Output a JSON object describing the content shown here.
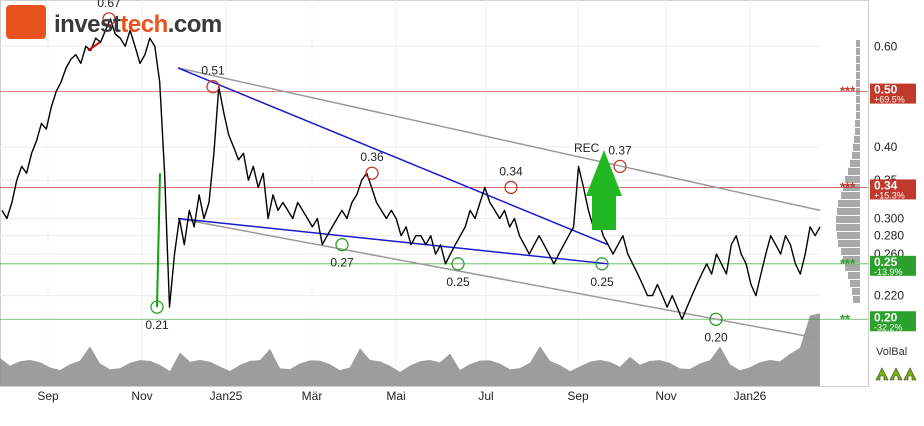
{
  "header": {
    "logo_text_a": "invest",
    "logo_text_b": "tech",
    "logo_text_c": ".com"
  },
  "volbal": {
    "label": "VolBal",
    "arrows": [
      "arrow-up-green-icon",
      "arrow-up-green-icon",
      "arrow-up-green-icon"
    ]
  },
  "colors": {
    "price_line": "#000000",
    "rising_segment": "#d40000",
    "falling_segment": "#10a010",
    "trend_blue": "#1a1acc",
    "channel_grey": "#9a9a9a",
    "resistance": "#c0392b",
    "support": "#2ca02c",
    "volume": "#8c8c8c",
    "rec_arrow": "#22b822"
  },
  "chart_data": {
    "type": "line",
    "x_labels": [
      "Sep",
      "Nov",
      "Jan25",
      "Mär",
      "Mai",
      "Jul",
      "Sep",
      "Nov",
      "Jan26"
    ],
    "y_ticks": [
      "0.60",
      "0.40",
      "0.35",
      "0.300",
      "0.280",
      "0.260",
      "0.220"
    ],
    "y_scale": "log",
    "ylim": [
      0.19,
      0.7
    ],
    "series": [
      {
        "values": [
          0.31,
          0.3,
          0.32,
          0.35,
          0.37,
          0.36,
          0.39,
          0.41,
          0.44,
          0.43,
          0.47,
          0.5,
          0.52,
          0.55,
          0.57,
          0.58,
          0.56,
          0.6,
          0.59,
          0.62,
          0.61,
          0.64,
          0.67,
          0.63,
          0.62,
          0.6,
          0.64,
          0.6,
          0.56,
          0.58,
          0.62,
          0.6,
          0.52,
          0.36,
          0.21,
          0.26,
          0.3,
          0.27,
          0.31,
          0.29,
          0.33,
          0.3,
          0.32,
          0.39,
          0.51,
          0.46,
          0.42,
          0.4,
          0.38,
          0.39,
          0.35,
          0.37,
          0.34,
          0.36,
          0.3,
          0.33,
          0.31,
          0.32,
          0.31,
          0.3,
          0.32,
          0.31,
          0.3,
          0.29,
          0.3,
          0.27,
          0.28,
          0.29,
          0.3,
          0.31,
          0.3,
          0.32,
          0.33,
          0.35,
          0.36,
          0.34,
          0.32,
          0.31,
          0.3,
          0.31,
          0.3,
          0.28,
          0.29,
          0.27,
          0.28,
          0.28,
          0.27,
          0.28,
          0.26,
          0.27,
          0.25,
          0.26,
          0.27,
          0.28,
          0.29,
          0.31,
          0.3,
          0.32,
          0.34,
          0.32,
          0.31,
          0.3,
          0.31,
          0.29,
          0.3,
          0.28,
          0.27,
          0.26,
          0.27,
          0.28,
          0.27,
          0.26,
          0.25,
          0.26,
          0.27,
          0.28,
          0.29,
          0.37,
          0.34,
          0.31,
          0.29,
          0.3,
          0.28,
          0.27,
          0.26,
          0.27,
          0.28,
          0.26,
          0.25,
          0.24,
          0.23,
          0.22,
          0.22,
          0.23,
          0.22,
          0.21,
          0.22,
          0.21,
          0.2,
          0.21,
          0.22,
          0.23,
          0.24,
          0.25,
          0.24,
          0.26,
          0.25,
          0.24,
          0.27,
          0.28,
          0.26,
          0.25,
          0.23,
          0.22,
          0.24,
          0.26,
          0.28,
          0.27,
          0.26,
          0.28,
          0.27,
          0.25,
          0.24,
          0.26,
          0.29,
          0.28,
          0.29
        ]
      }
    ],
    "annotations": [
      {
        "label": "0.67"
      },
      {
        "label": "0.51"
      },
      {
        "label": "0.36"
      },
      {
        "label": "0.34"
      },
      {
        "label": "0.37"
      },
      {
        "label": "0.21"
      },
      {
        "label": "0.27"
      },
      {
        "label": "0.25"
      },
      {
        "label": "0.25"
      },
      {
        "label": "0.20"
      }
    ],
    "signal": "REC",
    "levels": [
      {
        "value": "0.50",
        "pct": "+69.5%",
        "stars": "***",
        "kind": "resistance"
      },
      {
        "value": "0.34",
        "pct": "+15.3%",
        "stars": "***",
        "kind": "resistance"
      },
      {
        "value": "0.25",
        "pct": "-13.9%",
        "stars": "***",
        "kind": "support"
      },
      {
        "value": "0.20",
        "pct": "-32.2%",
        "stars": "**",
        "kind": "support"
      }
    ],
    "grid": true
  }
}
